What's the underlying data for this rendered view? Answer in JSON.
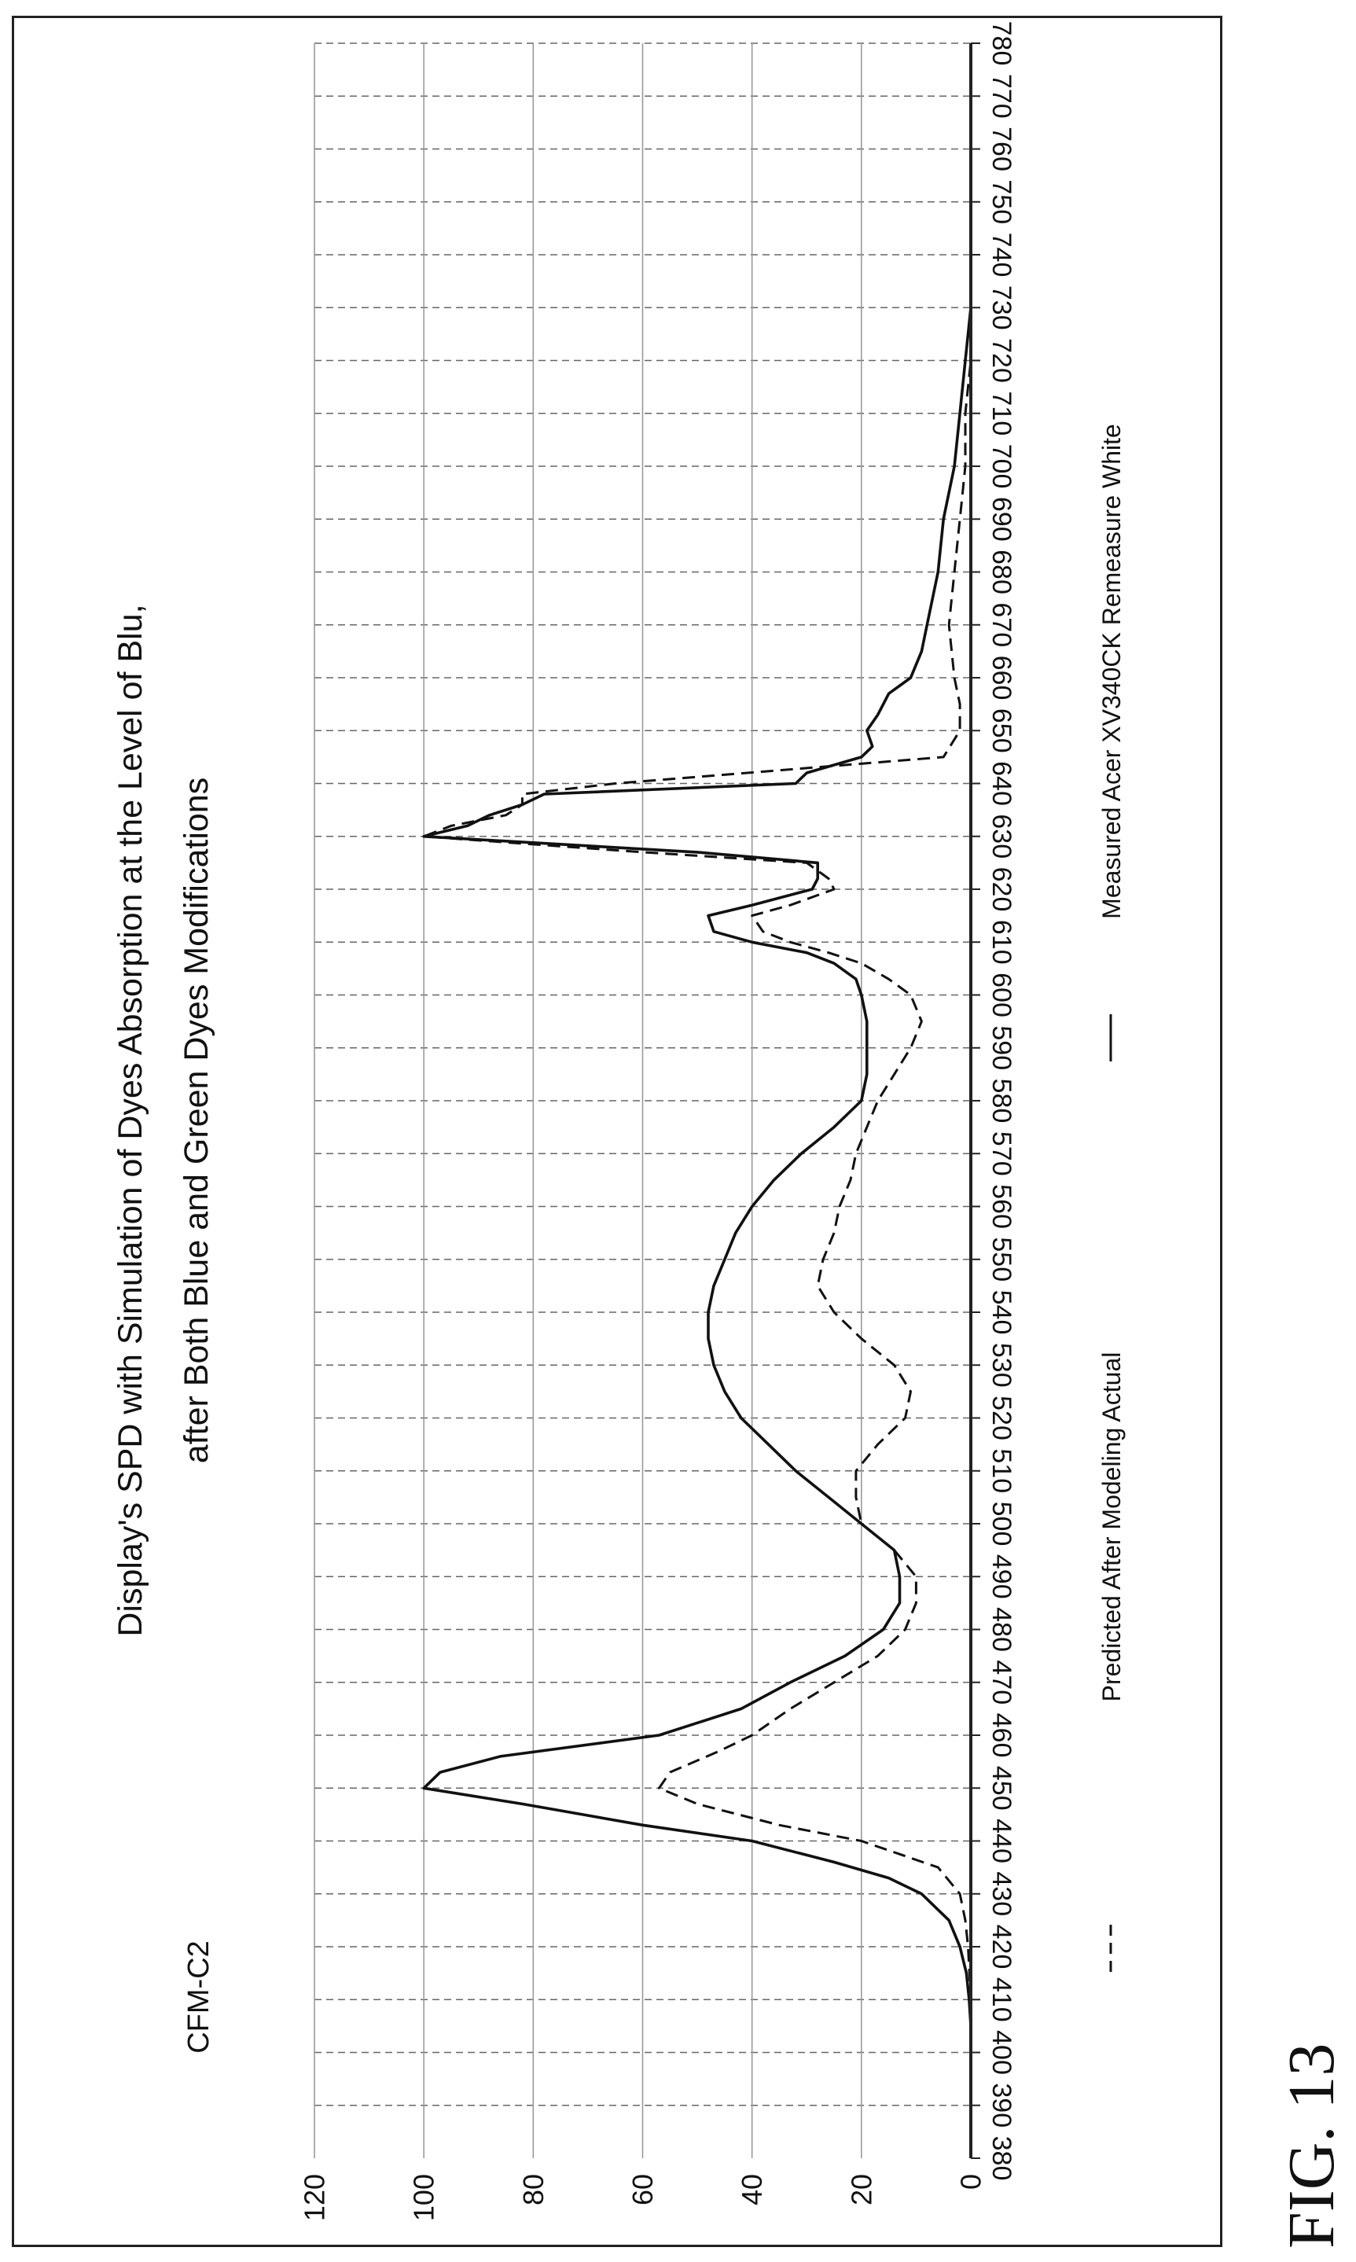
{
  "figure_label": "FIG. 13",
  "chart_data": {
    "type": "line",
    "corner_label": "CFM-C2",
    "title": [
      "Display's SPD with Simulation of Dyes Absorption at the Level of Blu,",
      "after Both Blue and Green Dyes Modifications"
    ],
    "xlabel": "",
    "ylabel": "",
    "xlim": [
      380,
      780
    ],
    "ylim": [
      0,
      120
    ],
    "x_ticks": [
      380,
      390,
      400,
      410,
      420,
      430,
      440,
      450,
      460,
      470,
      480,
      490,
      500,
      510,
      520,
      530,
      540,
      550,
      560,
      570,
      580,
      590,
      600,
      610,
      620,
      630,
      640,
      650,
      660,
      670,
      680,
      690,
      700,
      710,
      720,
      730,
      740,
      750,
      760,
      770,
      780
    ],
    "y_ticks": [
      0,
      20,
      40,
      60,
      80,
      100,
      120
    ],
    "grid": true,
    "orientation": "rotated 90 degrees counter-clockwise",
    "legend_position": "bottom",
    "series": [
      {
        "name": "Predicted After Modeling Actual",
        "style": "dashed",
        "color": "#111111",
        "x": [
          380,
          410,
          420,
          425,
          430,
          435,
          440,
          443,
          447,
          450,
          453,
          457,
          460,
          465,
          470,
          475,
          480,
          485,
          490,
          495,
          500,
          505,
          510,
          515,
          520,
          525,
          530,
          535,
          540,
          545,
          550,
          555,
          560,
          565,
          570,
          575,
          580,
          585,
          590,
          595,
          600,
          603,
          606,
          608,
          610,
          612,
          615,
          617,
          620,
          622,
          625,
          627,
          630,
          632,
          634,
          636,
          638,
          640,
          645,
          650,
          655,
          660,
          670,
          680,
          690,
          700,
          710,
          720,
          730,
          740,
          750,
          760,
          770,
          780
        ],
        "y": [
          0,
          0,
          0.5,
          1,
          2,
          6,
          20,
          35,
          50,
          57,
          55,
          46,
          40,
          33,
          25,
          17,
          12,
          10,
          10,
          14,
          20,
          21,
          21,
          17,
          12,
          11,
          14,
          20,
          25,
          28,
          27,
          25,
          24,
          22,
          21,
          19,
          17,
          14,
          11,
          9,
          11,
          15,
          20,
          26,
          33,
          38,
          40,
          33,
          25,
          26,
          30,
          60,
          100,
          95,
          85,
          82,
          82,
          65,
          5,
          2,
          2,
          3,
          4,
          3,
          2,
          1,
          1,
          0,
          0,
          0,
          0,
          0,
          0,
          0
        ]
      },
      {
        "name": "Measured Acer XV340CK Remeasure White",
        "style": "solid",
        "color": "#111111",
        "x": [
          380,
          405,
          410,
          415,
          420,
          425,
          430,
          433,
          436,
          440,
          443,
          447,
          450,
          453,
          456,
          460,
          465,
          470,
          475,
          480,
          485,
          490,
          495,
          500,
          505,
          510,
          515,
          520,
          525,
          530,
          535,
          540,
          545,
          550,
          555,
          560,
          565,
          570,
          575,
          580,
          585,
          590,
          595,
          600,
          603,
          606,
          608,
          610,
          612,
          615,
          617,
          620,
          622,
          625,
          627,
          630,
          632,
          634,
          636,
          638,
          640,
          642,
          645,
          647,
          650,
          653,
          657,
          660,
          665,
          670,
          680,
          690,
          700,
          710,
          720,
          730,
          740,
          750,
          760,
          770,
          780
        ],
        "y": [
          0,
          0,
          0.3,
          0.8,
          2,
          4,
          9,
          15,
          25,
          40,
          60,
          82,
          100,
          97,
          86,
          57,
          42,
          33,
          23,
          16,
          13,
          13,
          14,
          20,
          26,
          32,
          37,
          42,
          45,
          47,
          48,
          48,
          47,
          45,
          43,
          40,
          36,
          31,
          25,
          20,
          19,
          19,
          19,
          20,
          21,
          25,
          30,
          40,
          47,
          48,
          40,
          29,
          28,
          28,
          50,
          100,
          92,
          88,
          82,
          78,
          32,
          30,
          20,
          18,
          19,
          17,
          15,
          11,
          9,
          8,
          6,
          5,
          3,
          2,
          1,
          0,
          0,
          0,
          0,
          0,
          0
        ]
      }
    ]
  }
}
